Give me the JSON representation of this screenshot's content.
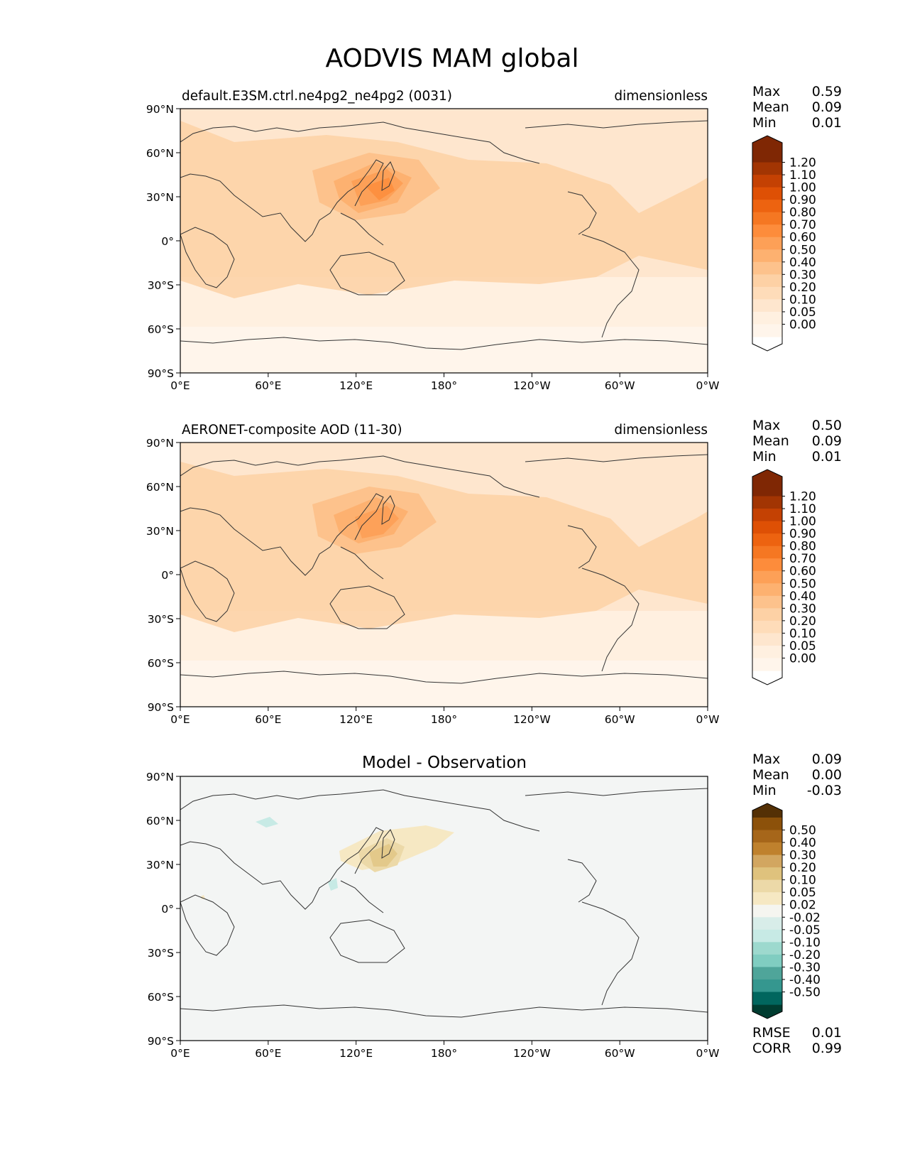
{
  "title": "AODVIS MAM global",
  "x_ticks": [
    "0°E",
    "60°E",
    "120°E",
    "180°",
    "120°W",
    "60°W",
    "0°W"
  ],
  "y_ticks": [
    "90°N",
    "60°N",
    "30°N",
    "0°",
    "30°S",
    "60°S",
    "90°S"
  ],
  "stat_labels": {
    "max": "Max",
    "mean": "Mean",
    "min": "Min",
    "rmse": "RMSE",
    "corr": "CORR"
  },
  "panels": [
    {
      "id": "test",
      "left_title": "default.E3SM.ctrl.ne4pg2_ne4pg2 (0031)",
      "center_title": "",
      "right_title": "dimensionless",
      "stats": {
        "max": "0.59",
        "mean": "0.09",
        "min": "0.01"
      },
      "colorbar": {
        "labels": [
          "1.20",
          "1.10",
          "1.00",
          "0.90",
          "0.80",
          "0.70",
          "0.60",
          "0.50",
          "0.40",
          "0.30",
          "0.20",
          "0.10",
          "0.05",
          "0.00"
        ],
        "colors": [
          "#7f2704",
          "#a23503",
          "#c44103",
          "#de5005",
          "#ed6310",
          "#f57722",
          "#fd8c3b",
          "#fda057",
          "#fdb170",
          "#fdc28c",
          "#fdd1a5",
          "#fedcb9",
          "#fee6ce",
          "#fff0e0",
          "#fff5eb"
        ],
        "extend_top": "#7f2704",
        "extend_bottom": "#ffffff"
      }
    },
    {
      "id": "reference",
      "left_title": "AERONET-composite AOD (11-30)",
      "center_title": "",
      "right_title": "dimensionless",
      "stats": {
        "max": "0.50",
        "mean": "0.09",
        "min": "0.01"
      },
      "colorbar": {
        "labels": [
          "1.20",
          "1.10",
          "1.00",
          "0.90",
          "0.80",
          "0.70",
          "0.60",
          "0.50",
          "0.40",
          "0.30",
          "0.20",
          "0.10",
          "0.05",
          "0.00"
        ],
        "colors": [
          "#7f2704",
          "#a23503",
          "#c44103",
          "#de5005",
          "#ed6310",
          "#f57722",
          "#fd8c3b",
          "#fda057",
          "#fdb170",
          "#fdc28c",
          "#fdd1a5",
          "#fedcb9",
          "#fee6ce",
          "#fff0e0",
          "#fff5eb"
        ],
        "extend_top": "#7f2704",
        "extend_bottom": "#ffffff"
      }
    },
    {
      "id": "difference",
      "left_title": "",
      "center_title": "Model - Observation",
      "right_title": "",
      "stats": {
        "max": "0.09",
        "mean": "0.00",
        "min": "-0.03",
        "rmse": "0.01",
        "corr": "0.99"
      },
      "colorbar": {
        "labels": [
          "0.50",
          "0.40",
          "0.30",
          "0.20",
          "0.10",
          "0.05",
          "0.02",
          "-0.02",
          "-0.05",
          "-0.10",
          "-0.20",
          "-0.30",
          "-0.40",
          "-0.50"
        ],
        "colors": [
          "#8c510a",
          "#a6661a",
          "#bf812d",
          "#d2a660",
          "#dfc27d",
          "#ecd9a8",
          "#f6e8c3",
          "#f5f5f0",
          "#d8ede9",
          "#c7eae5",
          "#9dd9ce",
          "#80cdc1",
          "#4fa59a",
          "#35978f",
          "#01665e"
        ],
        "extend_top": "#543005",
        "extend_bottom": "#003c30"
      }
    }
  ]
}
